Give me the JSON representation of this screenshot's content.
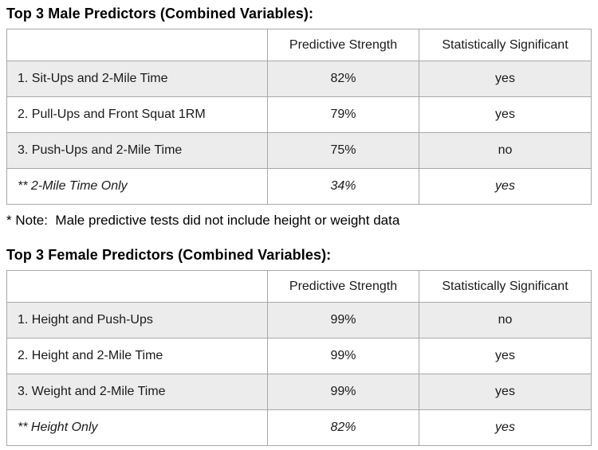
{
  "male_table": {
    "title": "Top 3 Male Predictors (Combined Variables):",
    "headers": {
      "label": "",
      "strength": "Predictive Strength",
      "significant": "Statistically Significant"
    },
    "rows": [
      {
        "label": "1. Sit-Ups and 2-Mile Time",
        "strength": "82%",
        "significant": "yes"
      },
      {
        "label": "2. Pull-Ups and Front Squat 1RM",
        "strength": "79%",
        "significant": "yes"
      },
      {
        "label": "3. Push-Ups and 2-Mile Time",
        "strength": "75%",
        "significant": "no"
      },
      {
        "label": "** 2-Mile Time Only",
        "strength": "34%",
        "significant": "yes"
      }
    ]
  },
  "note": "* Note:  Male predictive tests did not include height or weight data",
  "female_table": {
    "title": "Top 3 Female Predictors (Combined Variables):",
    "headers": {
      "label": "",
      "strength": "Predictive Strength",
      "significant": "Statistically Significant"
    },
    "rows": [
      {
        "label": "1. Height and Push-Ups",
        "strength": "99%",
        "significant": "no"
      },
      {
        "label": "2. Height and 2-Mile Time",
        "strength": "99%",
        "significant": "yes"
      },
      {
        "label": "3. Weight and 2-Mile Time",
        "strength": "99%",
        "significant": "yes"
      },
      {
        "label": "** Height Only",
        "strength": "82%",
        "significant": "yes"
      }
    ]
  },
  "colors": {
    "stripe": "#ececec",
    "border": "#a8a8a8",
    "text": "#1a1a1a"
  }
}
